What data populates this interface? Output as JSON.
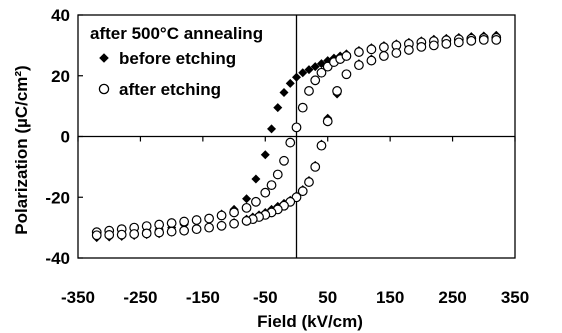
{
  "chart_data": {
    "type": "scatter",
    "xlabel": "Field (kV/cm)",
    "ylabel": "Polarization (µC/cm²)",
    "xlim": [
      -350,
      350
    ],
    "ylim": [
      -40,
      40
    ],
    "xticks": [
      -350,
      -250,
      -150,
      -50,
      50,
      150,
      250,
      350
    ],
    "xtick_labels": [
      "-350",
      "-250",
      "-150",
      "-50",
      "50",
      "150",
      "250",
      "350"
    ],
    "yticks": [
      -40,
      -20,
      0,
      20,
      40
    ],
    "ytick_labels": [
      "-40",
      "-20",
      "0",
      "20",
      "40"
    ],
    "legend_title": "after 500°C annealing",
    "legend_position": "top-left",
    "series": [
      {
        "name": "before etching",
        "marker": "filled-diamond",
        "color": "#000000",
        "x": [
          -320,
          -300,
          -280,
          -260,
          -240,
          -220,
          -200,
          -180,
          -160,
          -140,
          -120,
          -100,
          -80,
          -65,
          -50,
          -40,
          -30,
          -20,
          -10,
          0,
          10,
          20,
          30,
          40,
          50,
          60,
          70,
          80,
          100,
          120,
          140,
          160,
          180,
          200,
          220,
          240,
          260,
          280,
          300,
          320,
          320,
          300,
          280,
          260,
          240,
          220,
          200,
          180,
          160,
          140,
          120,
          100,
          80,
          65,
          50,
          40,
          30,
          20,
          10,
          0,
          -10,
          -20,
          -30,
          -40,
          -50,
          -60,
          -70,
          -80,
          -100,
          -120,
          -140,
          -160,
          -180,
          -200,
          -220,
          -240,
          -260,
          -280,
          -300,
          -320
        ],
        "y": [
          -33,
          -32.5,
          -32,
          -31.5,
          -31,
          -30.5,
          -30,
          -29,
          -28,
          -27,
          -25.5,
          -24,
          -20.5,
          -14,
          -6,
          2.5,
          9.5,
          14.5,
          17.5,
          19.5,
          21,
          22,
          23,
          24,
          25,
          25.8,
          26.5,
          27.2,
          28.3,
          29.2,
          29.9,
          30.5,
          31,
          31.5,
          32,
          32.3,
          32.6,
          32.9,
          33.1,
          33.3,
          33.3,
          33,
          32.5,
          32,
          31.5,
          31,
          30.5,
          29,
          28,
          27,
          25.5,
          24,
          20.5,
          14,
          6,
          -2.5,
          -9.5,
          -14.5,
          -17.5,
          -19.5,
          -21,
          -22,
          -23,
          -24,
          -25,
          -25.8,
          -26.5,
          -27.2,
          -28.3,
          -29.2,
          -29.9,
          -30.5,
          -31,
          -31.5,
          -32,
          -32.3,
          -32.6,
          -32.9,
          -33.1,
          -33.3
        ]
      },
      {
        "name": "after etching",
        "marker": "open-circle",
        "color": "#000000",
        "x": [
          -320,
          -300,
          -280,
          -260,
          -240,
          -220,
          -200,
          -180,
          -160,
          -140,
          -120,
          -100,
          -80,
          -65,
          -50,
          -40,
          -30,
          -20,
          -10,
          0,
          10,
          20,
          30,
          40,
          50,
          60,
          70,
          80,
          100,
          120,
          140,
          160,
          180,
          200,
          220,
          240,
          260,
          280,
          300,
          320,
          320,
          300,
          280,
          260,
          240,
          220,
          200,
          180,
          160,
          140,
          120,
          100,
          80,
          65,
          50,
          40,
          30,
          20,
          10,
          0,
          -10,
          -20,
          -30,
          -40,
          -50,
          -60,
          -70,
          -80,
          -100,
          -120,
          -140,
          -160,
          -180,
          -200,
          -220,
          -240,
          -260,
          -280,
          -300,
          -320
        ],
        "y": [
          -31.5,
          -31,
          -30.5,
          -30,
          -29.5,
          -29,
          -28.5,
          -28,
          -27.5,
          -27,
          -26,
          -25,
          -23.5,
          -21.5,
          -18.5,
          -16,
          -12.5,
          -8,
          -2,
          3,
          9.5,
          15,
          18.5,
          21,
          23,
          24.5,
          25.5,
          26.5,
          27.8,
          28.7,
          29.4,
          30,
          30.5,
          31,
          31.4,
          31.7,
          32,
          32.2,
          32.4,
          32.5,
          31.8,
          31.8,
          31.5,
          31,
          30.5,
          30,
          29.5,
          28.5,
          27.5,
          26.5,
          25,
          23.5,
          20.5,
          15,
          5,
          -3,
          -10,
          -15,
          -18,
          -20,
          -21.5,
          -22.8,
          -24,
          -25,
          -25.8,
          -26.5,
          -27.2,
          -27.8,
          -28.7,
          -29.4,
          -30,
          -30.5,
          -31,
          -31.3,
          -31.6,
          -31.9,
          -32.1,
          -32.3,
          -32.4,
          -32.5
        ]
      }
    ]
  }
}
